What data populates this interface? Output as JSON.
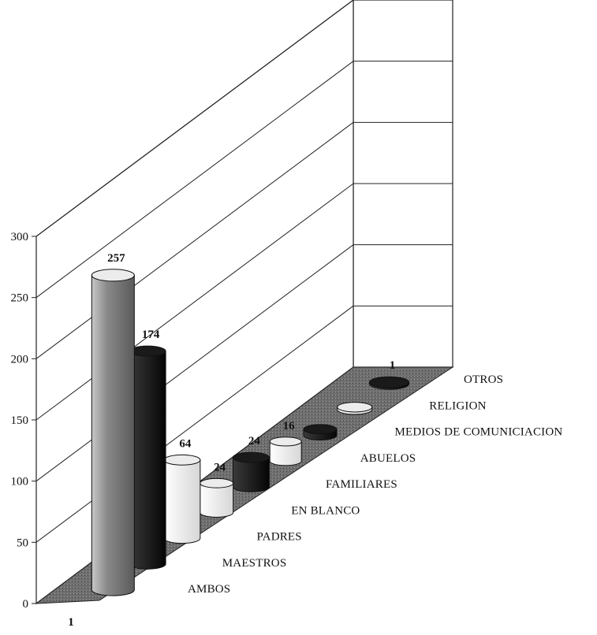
{
  "chart_data": {
    "type": "bar",
    "style": "3d-cylinder",
    "x_tick_labels": [
      "1"
    ],
    "ylim": [
      0,
      300
    ],
    "y_ticks": [
      "0",
      "50",
      "100",
      "150",
      "200",
      "250",
      "300"
    ],
    "grid": true,
    "series": [
      {
        "name": "AMBOS",
        "value": 257,
        "label": "257",
        "color": "#9a9a9a"
      },
      {
        "name": "MAESTROS",
        "value": 174,
        "label": "174",
        "color": "#111111"
      },
      {
        "name": "PADRES",
        "value": 64,
        "label": "64",
        "color": "#f4f4f4"
      },
      {
        "name": "EN BLANCO",
        "value": 24,
        "label": "24",
        "color": "#eeeeee"
      },
      {
        "name": "FAMILIARES",
        "value": 24,
        "label": "24",
        "color": "#111111"
      },
      {
        "name": "ABUELOS",
        "value": 16,
        "label": "16",
        "color": "#f2f2f2"
      },
      {
        "name": "MEDIOS DE COMUNICIACION",
        "value": 5,
        "label": "",
        "color": "#222222"
      },
      {
        "name": "RELIGION",
        "value": 2,
        "label": "",
        "color": "#f7f7f7"
      },
      {
        "name": "OTROS",
        "value": 1,
        "label": "1",
        "color": "#1a1a1a"
      }
    ]
  }
}
